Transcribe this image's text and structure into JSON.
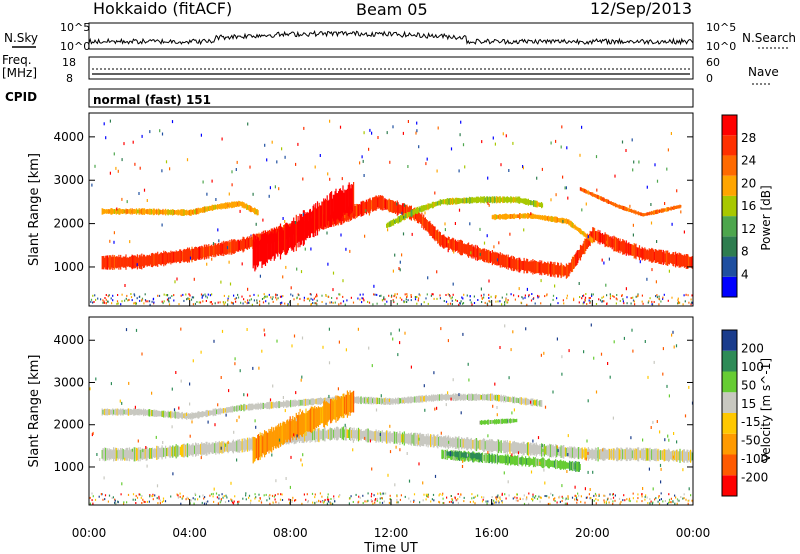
{
  "header": {
    "station": "Hokkaido (fitACF)",
    "beam": "Beam 05",
    "date": "12/Sep/2013"
  },
  "top_panels": {
    "nsky_label": "N.Sky",
    "nsearch_label": "N.Search",
    "noise_ticks": [
      "10^5",
      "10^0"
    ],
    "freq_label": "Freq.",
    "freq_unit": "[MHz]",
    "freq_ticks": [
      "18",
      "8"
    ],
    "nave_label": "Nave",
    "nave_ticks": [
      "60",
      "0"
    ],
    "cpid_label": "CPID",
    "cpid_value": "normal (fast) 151"
  },
  "colors": {
    "power": [
      "#0000ff",
      "#1f4fa0",
      "#2e7d4f",
      "#4da64d",
      "#a8c800",
      "#ffa500",
      "#ff6a00",
      "#ff3000",
      "#ff0000"
    ],
    "velocity": [
      "#ff0000",
      "#ff5a00",
      "#ff9a00",
      "#ffc800",
      "#c8c8c0",
      "#66cc33",
      "#2e8b57",
      "#1a3c8c"
    ]
  },
  "chart_data": [
    {
      "type": "heatmap",
      "name": "power",
      "xlabel": "",
      "ylabel": "Slant Range [km]",
      "x_ticks": [
        "00:00",
        "04:00",
        "08:00",
        "12:00",
        "16:00",
        "20:00",
        "00:00"
      ],
      "x_hours": [
        0,
        4,
        8,
        12,
        16,
        20,
        24
      ],
      "ylim": [
        100,
        4550
      ],
      "y_ticks": [
        1000,
        2000,
        3000,
        4000
      ],
      "colorbar_label": "Power [dB]",
      "colorbar_ticks": [
        "28",
        "24",
        "20",
        "16",
        "12",
        "8",
        "4"
      ],
      "bands": [
        {
          "points": [
            [
              0.5,
              1100
            ],
            [
              2,
              1120
            ],
            [
              4,
              1280
            ],
            [
              6,
              1500
            ],
            [
              8,
              1850
            ],
            [
              10,
              2150
            ],
            [
              11.5,
              2500
            ],
            [
              13,
              2200
            ],
            [
              14,
              1600
            ],
            [
              15.5,
              1300
            ],
            [
              17,
              1050
            ],
            [
              19,
              900
            ],
            [
              20,
              1750
            ],
            [
              21,
              1500
            ],
            [
              22,
              1300
            ],
            [
              24,
              1100
            ]
          ],
          "width": 280,
          "level": 7
        },
        {
          "points": [
            [
              0.5,
              2280
            ],
            [
              2,
              2280
            ],
            [
              4,
              2250
            ],
            [
              5,
              2380
            ],
            [
              6,
              2460
            ],
            [
              6.7,
              2250
            ]
          ],
          "width": 120,
          "level": 5
        },
        {
          "points": [
            [
              11.8,
              1950
            ],
            [
              13,
              2300
            ],
            [
              14,
              2500
            ],
            [
              15.5,
              2550
            ],
            [
              17,
              2550
            ],
            [
              18,
              2420
            ]
          ],
          "width": 130,
          "level": 4
        },
        {
          "points": [
            [
              16,
              2150
            ],
            [
              17.5,
              2180
            ],
            [
              19,
              2050
            ],
            [
              20,
              1600
            ]
          ],
          "width": 110,
          "level": 5
        },
        {
          "points": [
            [
              19.5,
              2800
            ],
            [
              21,
              2400
            ],
            [
              22,
              2200
            ],
            [
              23.5,
              2400
            ]
          ],
          "width": 80,
          "level": 6
        },
        {
          "points": [
            [
              6.5,
              1300
            ],
            [
              8,
              1700
            ],
            [
              9.5,
              2300
            ],
            [
              10.5,
              2600
            ]
          ],
          "width": 650,
          "level": 8
        }
      ]
    },
    {
      "type": "heatmap",
      "name": "velocity",
      "xlabel": "Time UT",
      "ylabel": "Slant Range [km]",
      "x_ticks": [
        "00:00",
        "04:00",
        "08:00",
        "12:00",
        "16:00",
        "20:00",
        "00:00"
      ],
      "x_hours": [
        0,
        4,
        8,
        12,
        16,
        20,
        24
      ],
      "ylim": [
        100,
        4550
      ],
      "y_ticks": [
        1000,
        2000,
        3000,
        4000
      ],
      "colorbar_label": "Velocity [m s^-1]",
      "colorbar_ticks": [
        "200",
        "100",
        "50",
        "15",
        "-15",
        "-50",
        "-100",
        "-200"
      ],
      "bands": [
        {
          "points": [
            [
              0.5,
              1300
            ],
            [
              2,
              1300
            ],
            [
              4,
              1400
            ],
            [
              6,
              1500
            ],
            [
              8,
              1700
            ],
            [
              10,
              1800
            ],
            [
              12,
              1700
            ],
            [
              14,
              1600
            ],
            [
              16,
              1500
            ],
            [
              18,
              1400
            ],
            [
              20,
              1300
            ],
            [
              22,
              1300
            ],
            [
              24,
              1250
            ]
          ],
          "width": 260,
          "level": 4
        },
        {
          "points": [
            [
              0.5,
              2300
            ],
            [
              2,
              2300
            ],
            [
              4,
              2200
            ],
            [
              6,
              2400
            ],
            [
              8,
              2500
            ],
            [
              10,
              2600
            ],
            [
              12,
              2550
            ],
            [
              14,
              2650
            ],
            [
              16,
              2650
            ],
            [
              18,
              2500
            ]
          ],
          "width": 140,
          "level": 4
        },
        {
          "points": [
            [
              6.5,
              1400
            ],
            [
              8,
              1900
            ],
            [
              9.5,
              2300
            ],
            [
              10.5,
              2550
            ]
          ],
          "width": 500,
          "level": 2
        },
        {
          "points": [
            [
              14,
              1300
            ],
            [
              16,
              1200
            ],
            [
              18,
              1100
            ],
            [
              19.5,
              1000
            ]
          ],
          "width": 200,
          "level": 5
        },
        {
          "points": [
            [
              14.2,
              1320
            ],
            [
              15.5,
              1250
            ]
          ],
          "width": 120,
          "level": 6
        },
        {
          "points": [
            [
              15.5,
              2050
            ],
            [
              17,
              2100
            ]
          ],
          "width": 100,
          "level": 5
        }
      ]
    }
  ]
}
